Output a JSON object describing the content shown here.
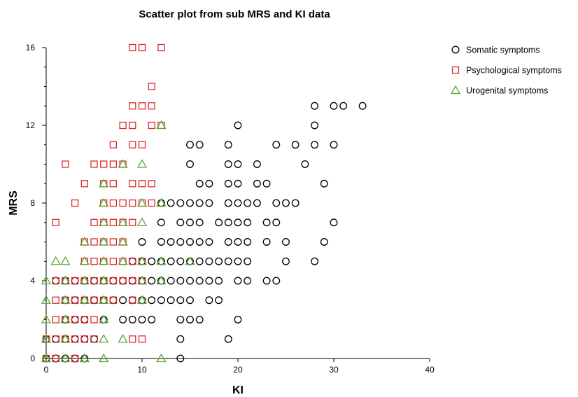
{
  "chart_data": {
    "type": "scatter",
    "title": "Scatter plot from sub MRS and KI data",
    "xlabel": "KI",
    "ylabel": "MRS",
    "xlim": [
      0,
      40
    ],
    "ylim": [
      0,
      16
    ],
    "x_ticks": [
      0,
      10,
      20,
      30,
      40
    ],
    "y_ticks": [
      0,
      4,
      8,
      12,
      16
    ],
    "grid": false,
    "legend_position": "top-right",
    "series": [
      {
        "name": "Somatic symptoms",
        "marker": "circle",
        "color": "#000000",
        "points": [
          [
            0,
            0
          ],
          [
            1,
            0
          ],
          [
            2,
            0
          ],
          [
            3,
            0
          ],
          [
            4,
            0
          ],
          [
            14,
            0
          ],
          [
            0,
            1
          ],
          [
            1,
            1
          ],
          [
            2,
            1
          ],
          [
            3,
            1
          ],
          [
            4,
            1
          ],
          [
            5,
            1
          ],
          [
            14,
            1
          ],
          [
            19,
            1
          ],
          [
            2,
            2
          ],
          [
            3,
            2
          ],
          [
            4,
            2
          ],
          [
            6,
            2
          ],
          [
            8,
            2
          ],
          [
            9,
            2
          ],
          [
            10,
            2
          ],
          [
            11,
            2
          ],
          [
            14,
            2
          ],
          [
            15,
            2
          ],
          [
            16,
            2
          ],
          [
            20,
            2
          ],
          [
            2,
            3
          ],
          [
            3,
            3
          ],
          [
            4,
            3
          ],
          [
            5,
            3
          ],
          [
            6,
            3
          ],
          [
            7,
            3
          ],
          [
            8,
            3
          ],
          [
            9,
            3
          ],
          [
            10,
            3
          ],
          [
            11,
            3
          ],
          [
            12,
            3
          ],
          [
            13,
            3
          ],
          [
            14,
            3
          ],
          [
            15,
            3
          ],
          [
            17,
            3
          ],
          [
            18,
            3
          ],
          [
            1,
            4
          ],
          [
            2,
            4
          ],
          [
            3,
            4
          ],
          [
            4,
            4
          ],
          [
            5,
            4
          ],
          [
            6,
            4
          ],
          [
            7,
            4
          ],
          [
            8,
            4
          ],
          [
            9,
            4
          ],
          [
            10,
            4
          ],
          [
            11,
            4
          ],
          [
            12,
            4
          ],
          [
            13,
            4
          ],
          [
            14,
            4
          ],
          [
            15,
            4
          ],
          [
            16,
            4
          ],
          [
            17,
            4
          ],
          [
            18,
            4
          ],
          [
            20,
            4
          ],
          [
            21,
            4
          ],
          [
            23,
            4
          ],
          [
            24,
            4
          ],
          [
            9,
            5
          ],
          [
            10,
            5
          ],
          [
            11,
            5
          ],
          [
            12,
            5
          ],
          [
            13,
            5
          ],
          [
            14,
            5
          ],
          [
            15,
            5
          ],
          [
            16,
            5
          ],
          [
            17,
            5
          ],
          [
            18,
            5
          ],
          [
            19,
            5
          ],
          [
            20,
            5
          ],
          [
            21,
            5
          ],
          [
            25,
            5
          ],
          [
            28,
            5
          ],
          [
            10,
            6
          ],
          [
            12,
            6
          ],
          [
            13,
            6
          ],
          [
            14,
            6
          ],
          [
            15,
            6
          ],
          [
            16,
            6
          ],
          [
            17,
            6
          ],
          [
            19,
            6
          ],
          [
            20,
            6
          ],
          [
            21,
            6
          ],
          [
            23,
            6
          ],
          [
            25,
            6
          ],
          [
            29,
            6
          ],
          [
            12,
            7
          ],
          [
            14,
            7
          ],
          [
            15,
            7
          ],
          [
            16,
            7
          ],
          [
            18,
            7
          ],
          [
            19,
            7
          ],
          [
            20,
            7
          ],
          [
            21,
            7
          ],
          [
            23,
            7
          ],
          [
            24,
            7
          ],
          [
            30,
            7
          ],
          [
            12,
            8
          ],
          [
            13,
            8
          ],
          [
            14,
            8
          ],
          [
            15,
            8
          ],
          [
            16,
            8
          ],
          [
            17,
            8
          ],
          [
            19,
            8
          ],
          [
            20,
            8
          ],
          [
            21,
            8
          ],
          [
            22,
            8
          ],
          [
            24,
            8
          ],
          [
            25,
            8
          ],
          [
            26,
            8
          ],
          [
            16,
            9
          ],
          [
            17,
            9
          ],
          [
            19,
            9
          ],
          [
            20,
            9
          ],
          [
            22,
            9
          ],
          [
            23,
            9
          ],
          [
            29,
            9
          ],
          [
            15,
            10
          ],
          [
            19,
            10
          ],
          [
            20,
            10
          ],
          [
            22,
            10
          ],
          [
            27,
            10
          ],
          [
            15,
            11
          ],
          [
            16,
            11
          ],
          [
            19,
            11
          ],
          [
            24,
            11
          ],
          [
            26,
            11
          ],
          [
            28,
            11
          ],
          [
            30,
            11
          ],
          [
            20,
            12
          ],
          [
            28,
            12
          ],
          [
            28,
            13
          ],
          [
            30,
            13
          ],
          [
            31,
            13
          ],
          [
            33,
            13
          ]
        ]
      },
      {
        "name": "Psychological symptoms",
        "marker": "square",
        "color": "#e0262d",
        "points": [
          [
            0,
            0
          ],
          [
            1,
            0
          ],
          [
            3,
            0
          ],
          [
            0,
            1
          ],
          [
            1,
            1
          ],
          [
            2,
            1
          ],
          [
            3,
            1
          ],
          [
            4,
            1
          ],
          [
            5,
            1
          ],
          [
            9,
            1
          ],
          [
            10,
            1
          ],
          [
            1,
            2
          ],
          [
            2,
            2
          ],
          [
            3,
            2
          ],
          [
            4,
            2
          ],
          [
            5,
            2
          ],
          [
            1,
            3
          ],
          [
            2,
            3
          ],
          [
            3,
            3
          ],
          [
            4,
            3
          ],
          [
            5,
            3
          ],
          [
            6,
            3
          ],
          [
            7,
            3
          ],
          [
            9,
            3
          ],
          [
            1,
            4
          ],
          [
            2,
            4
          ],
          [
            3,
            4
          ],
          [
            4,
            4
          ],
          [
            5,
            4
          ],
          [
            6,
            4
          ],
          [
            7,
            4
          ],
          [
            8,
            4
          ],
          [
            9,
            4
          ],
          [
            10,
            4
          ],
          [
            4,
            5
          ],
          [
            5,
            5
          ],
          [
            6,
            5
          ],
          [
            7,
            5
          ],
          [
            8,
            5
          ],
          [
            9,
            5
          ],
          [
            10,
            5
          ],
          [
            4,
            6
          ],
          [
            5,
            6
          ],
          [
            6,
            6
          ],
          [
            7,
            6
          ],
          [
            8,
            6
          ],
          [
            1,
            7
          ],
          [
            5,
            7
          ],
          [
            6,
            7
          ],
          [
            7,
            7
          ],
          [
            8,
            7
          ],
          [
            9,
            7
          ],
          [
            3,
            8
          ],
          [
            6,
            8
          ],
          [
            7,
            8
          ],
          [
            8,
            8
          ],
          [
            9,
            8
          ],
          [
            10,
            8
          ],
          [
            11,
            8
          ],
          [
            4,
            9
          ],
          [
            6,
            9
          ],
          [
            7,
            9
          ],
          [
            9,
            9
          ],
          [
            10,
            9
          ],
          [
            11,
            9
          ],
          [
            2,
            10
          ],
          [
            5,
            10
          ],
          [
            6,
            10
          ],
          [
            7,
            10
          ],
          [
            8,
            10
          ],
          [
            7,
            11
          ],
          [
            9,
            11
          ],
          [
            10,
            11
          ],
          [
            8,
            12
          ],
          [
            9,
            12
          ],
          [
            11,
            12
          ],
          [
            12,
            12
          ],
          [
            9,
            13
          ],
          [
            10,
            13
          ],
          [
            11,
            13
          ],
          [
            11,
            14
          ],
          [
            9,
            16
          ],
          [
            10,
            16
          ],
          [
            12,
            16
          ]
        ]
      },
      {
        "name": "Urogenital symptoms",
        "marker": "triangle",
        "color": "#5aa832",
        "points": [
          [
            0,
            0
          ],
          [
            2,
            0
          ],
          [
            4,
            0
          ],
          [
            6,
            0
          ],
          [
            12,
            0
          ],
          [
            0,
            1
          ],
          [
            2,
            1
          ],
          [
            6,
            1
          ],
          [
            8,
            1
          ],
          [
            0,
            2
          ],
          [
            2,
            2
          ],
          [
            6,
            2
          ],
          [
            0,
            3
          ],
          [
            2,
            3
          ],
          [
            4,
            3
          ],
          [
            6,
            3
          ],
          [
            10,
            3
          ],
          [
            0,
            4
          ],
          [
            2,
            4
          ],
          [
            4,
            4
          ],
          [
            6,
            4
          ],
          [
            10,
            4
          ],
          [
            12,
            4
          ],
          [
            1,
            5
          ],
          [
            2,
            5
          ],
          [
            4,
            5
          ],
          [
            6,
            5
          ],
          [
            8,
            5
          ],
          [
            10,
            5
          ],
          [
            12,
            5
          ],
          [
            15,
            5
          ],
          [
            4,
            6
          ],
          [
            6,
            6
          ],
          [
            8,
            6
          ],
          [
            6,
            7
          ],
          [
            8,
            7
          ],
          [
            10,
            7
          ],
          [
            6,
            8
          ],
          [
            10,
            8
          ],
          [
            12,
            8
          ],
          [
            6,
            9
          ],
          [
            8,
            10
          ],
          [
            10,
            10
          ],
          [
            12,
            12
          ]
        ]
      }
    ]
  }
}
